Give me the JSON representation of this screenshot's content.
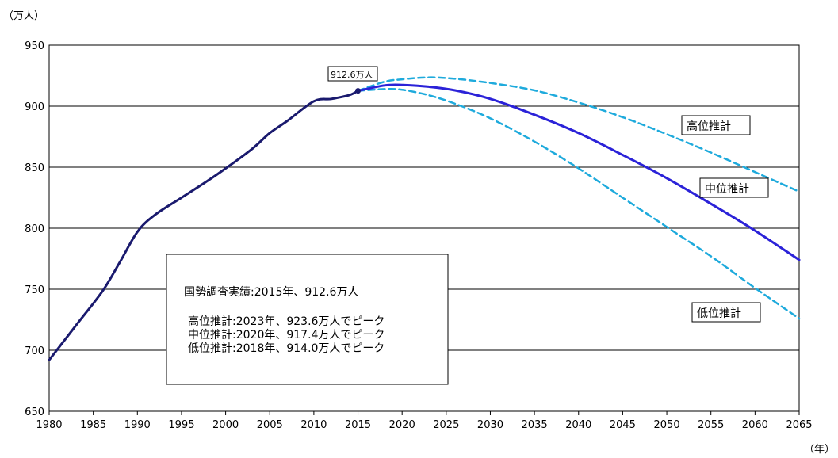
{
  "chart_data": {
    "type": "line",
    "ylabel": "（万人）",
    "xlabel": "（年）",
    "ylim": [
      650,
      950
    ],
    "yticks": [
      650,
      700,
      750,
      800,
      850,
      900,
      950
    ],
    "xlim": [
      1980,
      2065
    ],
    "xticks": [
      1980,
      1985,
      1990,
      1995,
      2000,
      2005,
      2010,
      2015,
      2020,
      2025,
      2030,
      2035,
      2040,
      2045,
      2050,
      2055,
      2060,
      2065
    ],
    "grid": true,
    "peak_annotation": {
      "x": 2015,
      "y": 912.6,
      "label": "912.6万人"
    },
    "series": [
      {
        "color": "#1a1a6e",
        "style": "solid",
        "points": [
          [
            1980,
            692
          ],
          [
            1983,
            720
          ],
          [
            1986,
            748
          ],
          [
            1988,
            772
          ],
          [
            1990,
            797
          ],
          [
            1992,
            811
          ],
          [
            1995,
            825
          ],
          [
            1998,
            839
          ],
          [
            2000,
            849
          ],
          [
            2003,
            865
          ],
          [
            2005,
            878
          ],
          [
            2007,
            888
          ],
          [
            2010,
            904
          ],
          [
            2012,
            906
          ],
          [
            2014,
            909
          ],
          [
            2015,
            912.6
          ]
        ]
      },
      {
        "name": "高位推計",
        "color": "#1eaadc",
        "style": "dashed",
        "points": [
          [
            2015,
            912.6
          ],
          [
            2018,
            920
          ],
          [
            2020,
            922
          ],
          [
            2023,
            923.6
          ],
          [
            2026,
            922.5
          ],
          [
            2030,
            919
          ],
          [
            2035,
            913
          ],
          [
            2040,
            903
          ],
          [
            2045,
            891
          ],
          [
            2050,
            877
          ],
          [
            2055,
            862
          ],
          [
            2060,
            846
          ],
          [
            2065,
            830
          ]
        ]
      },
      {
        "name": "中位推計",
        "color": "#2b22d8",
        "style": "solid",
        "points": [
          [
            2015,
            912.6
          ],
          [
            2018,
            917
          ],
          [
            2020,
            917.4
          ],
          [
            2023,
            916
          ],
          [
            2026,
            913
          ],
          [
            2030,
            906
          ],
          [
            2035,
            893
          ],
          [
            2040,
            878
          ],
          [
            2045,
            860
          ],
          [
            2050,
            841
          ],
          [
            2055,
            820
          ],
          [
            2060,
            798
          ],
          [
            2065,
            774
          ]
        ]
      },
      {
        "name": "低位推計",
        "color": "#1eaadc",
        "style": "dashed",
        "points": [
          [
            2015,
            912.6
          ],
          [
            2018,
            914
          ],
          [
            2020,
            913.5
          ],
          [
            2023,
            909
          ],
          [
            2026,
            902
          ],
          [
            2030,
            890
          ],
          [
            2035,
            871
          ],
          [
            2040,
            849
          ],
          [
            2045,
            825
          ],
          [
            2050,
            801
          ],
          [
            2055,
            777
          ],
          [
            2060,
            751
          ],
          [
            2065,
            726
          ]
        ]
      }
    ],
    "series_labels": [
      {
        "text": "高位推計"
      },
      {
        "text": "中位推計"
      },
      {
        "text": "低位推計"
      }
    ],
    "note_box": {
      "lines": [
        "国勢調査実績:2015年、912.6万人",
        "高位推計:2023年、923.6万人でピーク",
        "中位推計:2020年、917.4万人でピーク",
        "低位推計:2018年、914.0万人でピーク"
      ]
    }
  }
}
